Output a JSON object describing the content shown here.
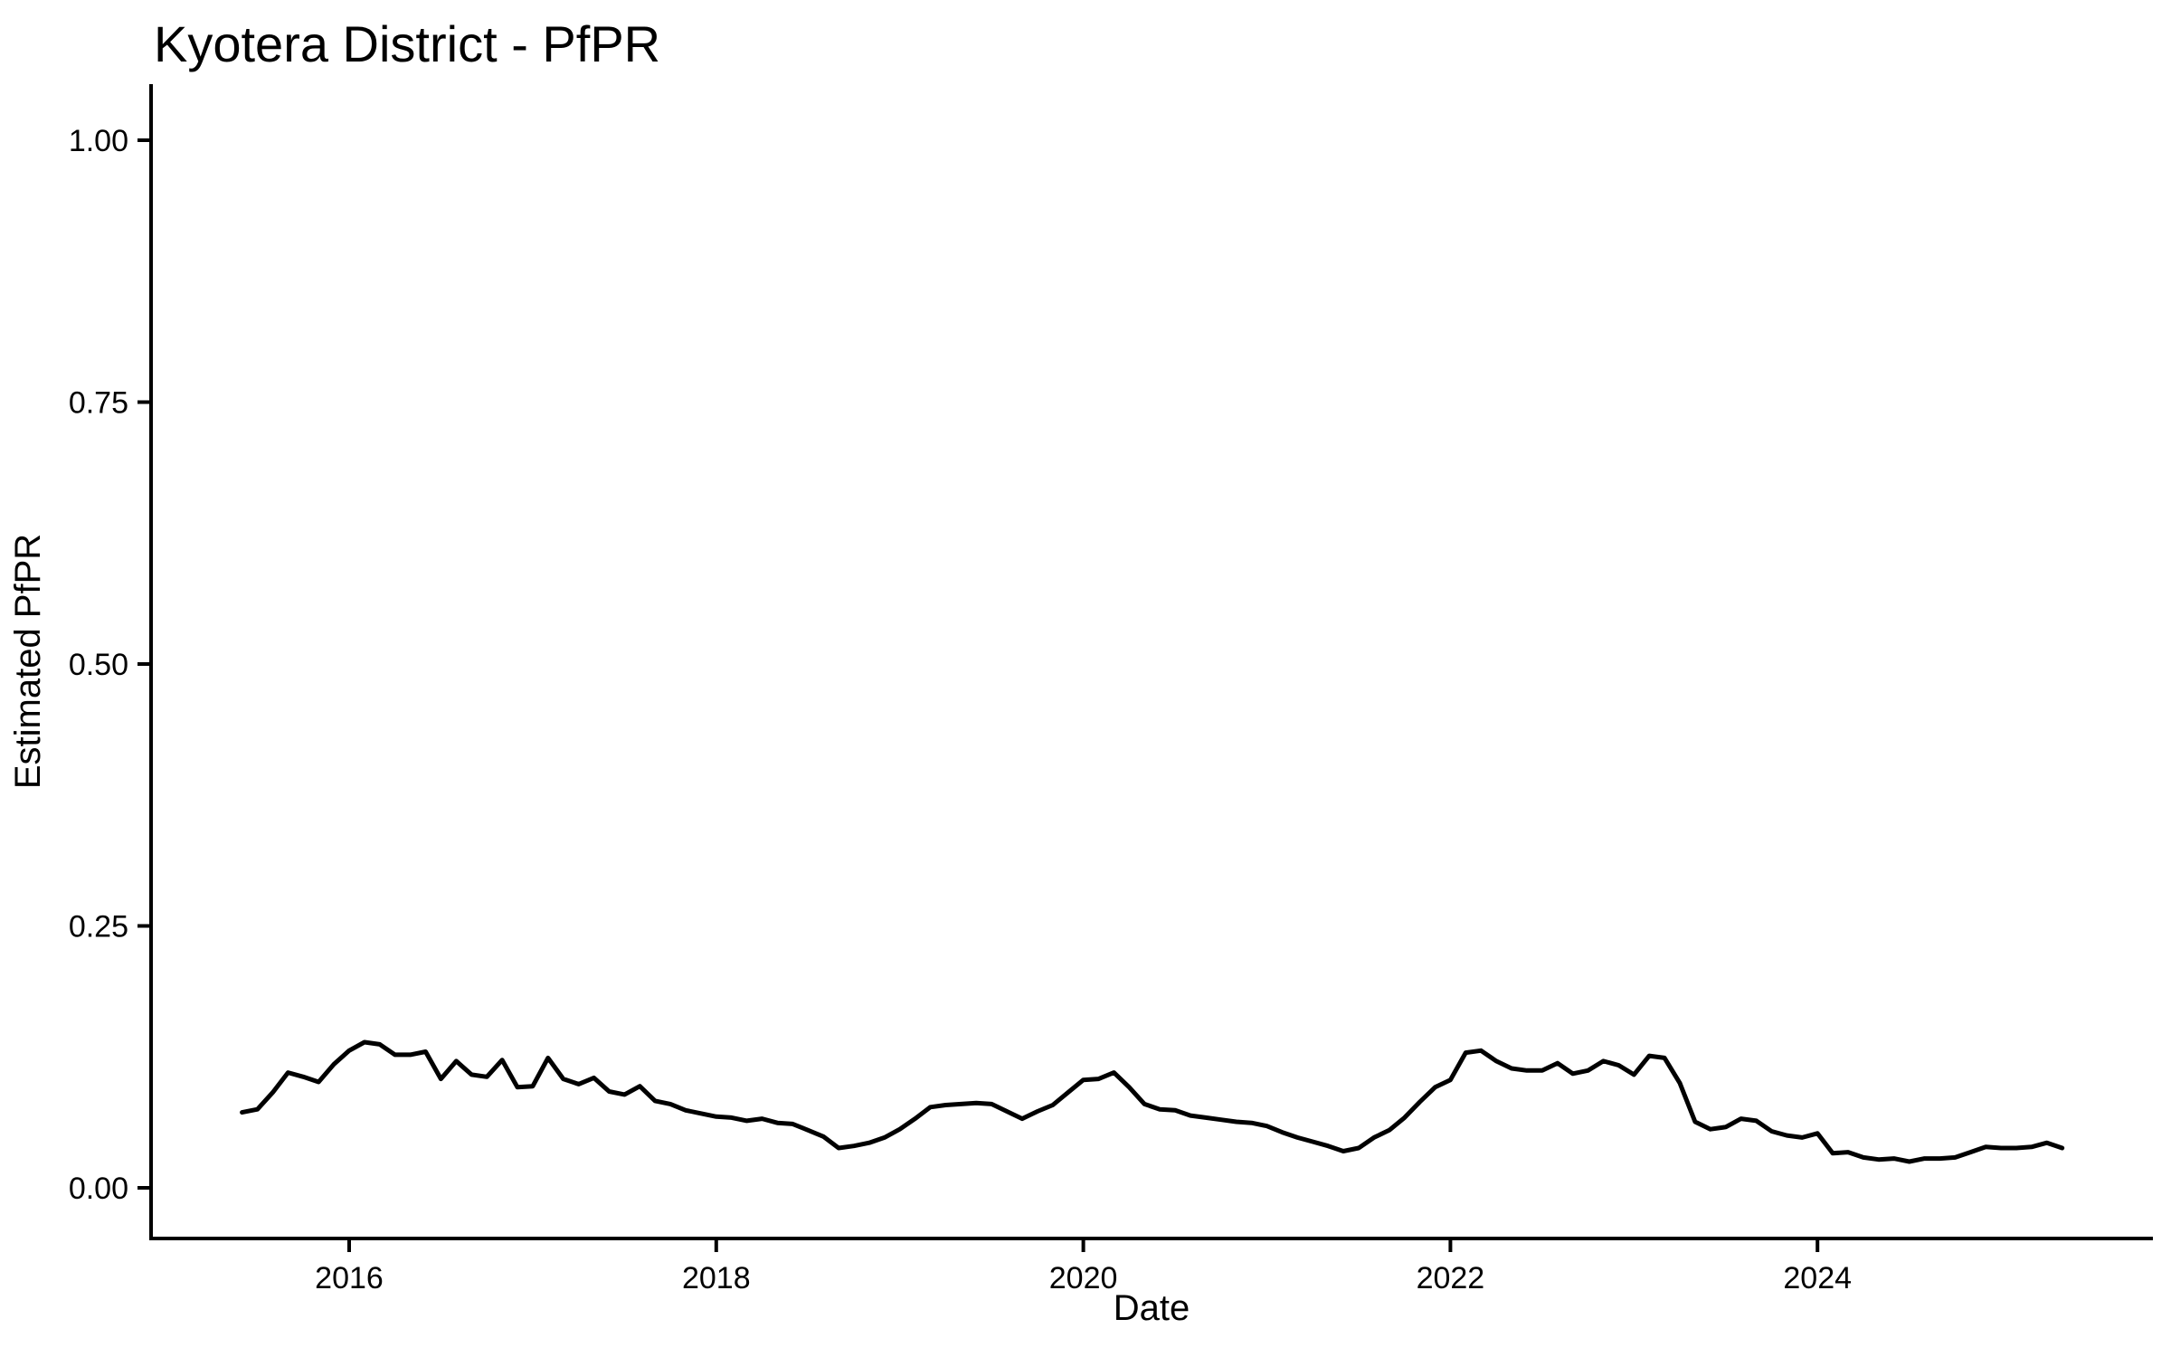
{
  "chart": {
    "title": "Kyotera District - PfPR",
    "x_label": "Date",
    "y_label": "Estimated PfPR"
  },
  "chart_data": {
    "type": "line",
    "title": "Kyotera District - PfPR",
    "xlabel": "Date",
    "ylabel": "Estimated PfPR",
    "legend": "none",
    "grid": false,
    "background_color": "#FFFFFF",
    "line_color": "#000000",
    "axis_color": "#000000",
    "text_color": "#000000",
    "ylim": [
      0.0,
      1.05
    ],
    "xlim_years": [
      2015.42,
      2025.5
    ],
    "y_ticks": [
      {
        "label": "0.00",
        "value": 0.0
      },
      {
        "label": "0.25",
        "value": 0.25
      },
      {
        "label": "0.50",
        "value": 0.5
      },
      {
        "label": "0.75",
        "value": 0.75
      },
      {
        "label": "1.00",
        "value": 1.0
      }
    ],
    "x_ticks": [
      {
        "label": "2016",
        "value": 2016
      },
      {
        "label": "2018",
        "value": 2018
      },
      {
        "label": "2020",
        "value": 2020
      },
      {
        "label": "2022",
        "value": 2022
      },
      {
        "label": "2024",
        "value": 2024
      }
    ],
    "series": [
      {
        "name": "Estimated PfPR",
        "cadence": "monthly",
        "start_year": 2015,
        "start_month": 6,
        "end_year": 2025,
        "end_month": 5,
        "values": [
          0.072,
          0.075,
          0.091,
          0.11,
          0.106,
          0.101,
          0.118,
          0.131,
          0.139,
          0.137,
          0.127,
          0.127,
          0.13,
          0.104,
          0.121,
          0.108,
          0.106,
          0.122,
          0.096,
          0.097,
          0.124,
          0.104,
          0.099,
          0.105,
          0.092,
          0.089,
          0.097,
          0.083,
          0.08,
          0.074,
          0.071,
          0.068,
          0.067,
          0.064,
          0.066,
          0.062,
          0.061,
          0.055,
          0.049,
          0.038,
          0.04,
          0.043,
          0.048,
          0.056,
          0.066,
          0.077,
          0.079,
          0.08,
          0.081,
          0.08,
          0.073,
          0.066,
          0.073,
          0.079,
          0.091,
          0.103,
          0.104,
          0.11,
          0.096,
          0.08,
          0.075,
          0.074,
          0.069,
          0.067,
          0.065,
          0.063,
          0.062,
          0.059,
          0.053,
          0.048,
          0.044,
          0.04,
          0.035,
          0.038,
          0.048,
          0.055,
          0.067,
          0.082,
          0.096,
          0.103,
          0.129,
          0.131,
          0.121,
          0.114,
          0.112,
          0.112,
          0.119,
          0.109,
          0.112,
          0.121,
          0.117,
          0.108,
          0.126,
          0.124,
          0.1,
          0.063,
          0.056,
          0.058,
          0.066,
          0.064,
          0.054,
          0.05,
          0.048,
          0.052,
          0.033,
          0.034,
          0.029,
          0.027,
          0.028,
          0.025,
          0.028,
          0.028,
          0.029,
          0.034,
          0.039,
          0.038,
          0.038,
          0.039,
          0.043,
          0.038
        ]
      }
    ]
  }
}
